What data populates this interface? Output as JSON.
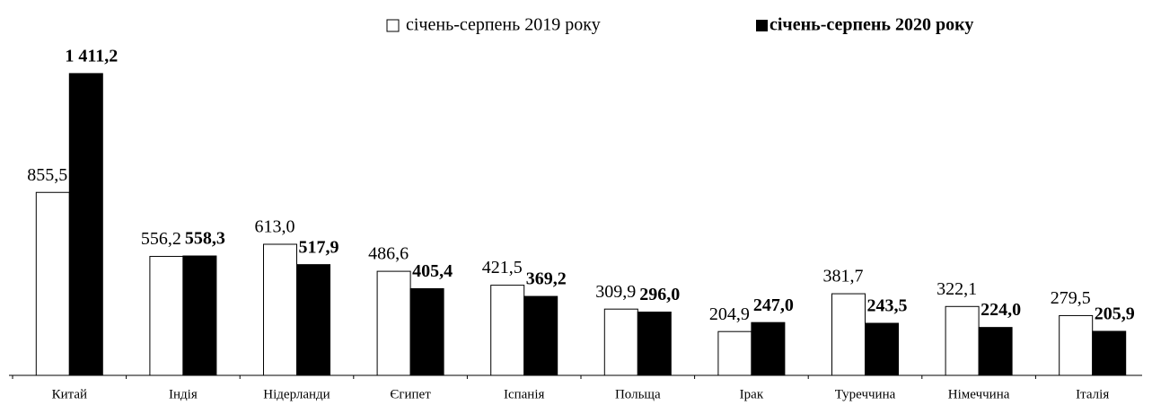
{
  "chart_data": {
    "type": "bar",
    "categories": [
      "Китай",
      "Індія",
      "Нідерланди",
      "Єгипет",
      "Іспанія",
      "Польща",
      "Ірак",
      "Туреччина",
      "Німеччина",
      "Італія"
    ],
    "series": [
      {
        "name": "січень-серпень 2019 року",
        "color": "#ffffff",
        "values": [
          855.5,
          556.2,
          613.0,
          486.6,
          421.5,
          309.9,
          204.9,
          381.7,
          322.1,
          279.5
        ],
        "value_labels": [
          "855,5",
          "556,2",
          "613,0",
          "486,6",
          "421,5",
          "309,9",
          "204,9",
          "381,7",
          "322,1",
          "279,5"
        ]
      },
      {
        "name": "січень-серпень 2020 року",
        "color": "#000000",
        "values": [
          1411.2,
          558.3,
          517.9,
          405.4,
          369.2,
          296.0,
          247.0,
          243.5,
          224.0,
          205.9
        ],
        "value_labels": [
          "1 411,2",
          "558,3",
          "517,9",
          "405,4",
          "369,2",
          "296,0",
          "247,0",
          "243,5",
          "224,0",
          "205,9"
        ]
      }
    ],
    "ylim": [
      0,
      1520
    ]
  }
}
